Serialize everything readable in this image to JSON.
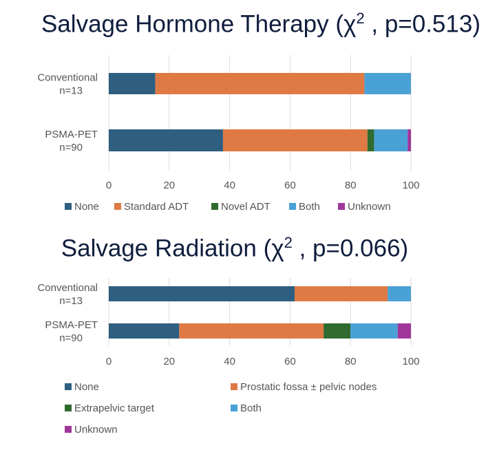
{
  "chart_data": [
    {
      "type": "bar",
      "orientation": "horizontal",
      "stacked": true,
      "title": "Salvage Hormone Therapy (χ",
      "title_sup": "2",
      "title_rest": " , p=0.513)",
      "categories": [
        {
          "line1": "Conventional",
          "line2": "n=13"
        },
        {
          "line1": "PSMA-PET",
          "line2": "n=90"
        }
      ],
      "series": [
        {
          "name": "None",
          "color": "#2e5f80",
          "values": [
            15.4,
            37.8
          ]
        },
        {
          "name": "Standard ADT",
          "color": "#df7a45",
          "values": [
            69.2,
            47.8
          ]
        },
        {
          "name": "Novel ADT",
          "color": "#2f6b2f",
          "values": [
            0,
            2.2
          ]
        },
        {
          "name": "Both",
          "color": "#4aa1d6",
          "values": [
            15.4,
            11.1
          ]
        },
        {
          "name": "Unknown",
          "color": "#a0369a",
          "values": [
            0,
            1.1
          ]
        }
      ],
      "xlim": [
        0,
        100
      ],
      "xticks": [
        "0",
        "20",
        "40",
        "60",
        "80",
        "100"
      ],
      "legend_position": "bottom",
      "grid": "vertical"
    },
    {
      "type": "bar",
      "orientation": "horizontal",
      "stacked": true,
      "title": "Salvage Radiation (χ",
      "title_sup": "2",
      "title_rest": " , p=0.066)",
      "categories": [
        {
          "line1": "Conventional",
          "line2": "n=13"
        },
        {
          "line1": "PSMA-PET",
          "line2": "n=90"
        }
      ],
      "series": [
        {
          "name": "None",
          "color": "#2e5f80",
          "values": [
            61.5,
            23.3
          ]
        },
        {
          "name": "Prostatic fossa ± pelvic nodes",
          "color": "#df7a45",
          "values": [
            30.8,
            47.8
          ]
        },
        {
          "name": "Extrapelvic target",
          "color": "#2f6b2f",
          "values": [
            0,
            8.9
          ]
        },
        {
          "name": "Both",
          "color": "#4aa1d6",
          "values": [
            7.7,
            15.6
          ]
        },
        {
          "name": "Unknown",
          "color": "#a0369a",
          "values": [
            0,
            4.4
          ]
        }
      ],
      "xlim": [
        0,
        100
      ],
      "xticks": [
        "0",
        "20",
        "40",
        "60",
        "80",
        "100"
      ],
      "legend_position": "bottom",
      "grid": "vertical"
    }
  ]
}
